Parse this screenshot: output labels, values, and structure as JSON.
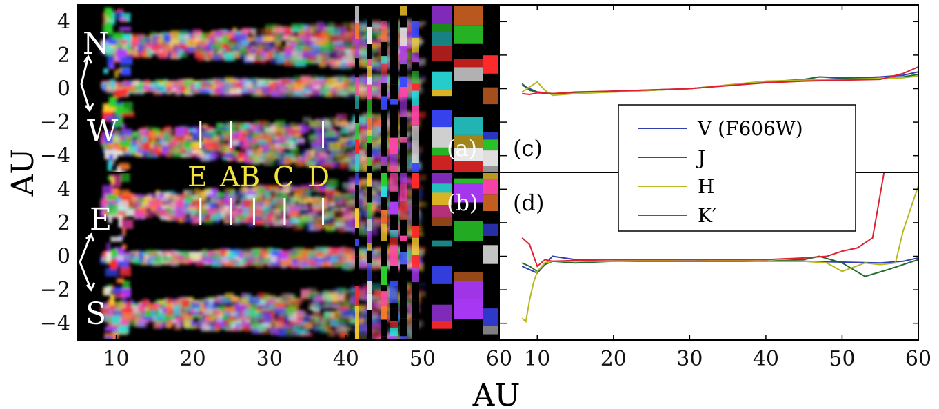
{
  "chart_data": [
    {
      "panel": "a",
      "type": "heatmap",
      "label": "(a)",
      "xlim": [
        5,
        60
      ],
      "ylim": [
        -5,
        5
      ],
      "yticks": [
        "4",
        "2",
        "0",
        "−2",
        "−4"
      ],
      "direction_labels": [
        "N",
        "W"
      ],
      "features": [
        {
          "name": "E",
          "x": 21
        },
        {
          "name": "A",
          "x": 25
        },
        {
          "name": "D",
          "x": 37
        }
      ]
    },
    {
      "panel": "b",
      "type": "heatmap",
      "label": "(b)",
      "xlim": [
        5,
        60
      ],
      "ylim": [
        -5,
        5
      ],
      "yticks": [
        "4",
        "2",
        "0",
        "−2",
        "−4"
      ],
      "xticks": [
        "10",
        "20",
        "30",
        "40",
        "50",
        "60"
      ],
      "direction_labels": [
        "E",
        "S"
      ],
      "features": [
        {
          "name": "E",
          "x": 21
        },
        {
          "name": "A",
          "x": 25
        },
        {
          "name": "B",
          "x": 28
        },
        {
          "name": "C",
          "x": 32
        },
        {
          "name": "D",
          "x": 37
        }
      ],
      "feature_label_text": [
        "E",
        "AB",
        "C",
        "D"
      ]
    },
    {
      "panel": "c",
      "type": "line",
      "label": "(c)",
      "xlim": [
        5,
        60
      ],
      "ylim": [
        -5,
        5
      ],
      "series": [
        {
          "name": "V (F606W)",
          "color": "#3040b0",
          "x": [
            8,
            10,
            12,
            15,
            20,
            30,
            40,
            45,
            50,
            55,
            58,
            60
          ],
          "y": [
            0.2,
            -0.2,
            -0.3,
            -0.25,
            -0.15,
            0.0,
            0.4,
            0.5,
            0.6,
            0.7,
            0.8,
            1.0
          ]
        },
        {
          "name": "J",
          "color": "#206a30",
          "x": [
            8,
            9,
            10,
            12,
            15,
            20,
            30,
            40,
            45,
            47,
            50,
            55,
            58,
            60
          ],
          "y": [
            0.3,
            -0.1,
            -0.2,
            -0.3,
            -0.25,
            -0.2,
            0.0,
            0.4,
            0.55,
            0.7,
            0.65,
            0.6,
            0.7,
            0.85
          ]
        },
        {
          "name": "H",
          "color": "#b8b820",
          "x": [
            8,
            9,
            10,
            11,
            12,
            15,
            20,
            30,
            40,
            45,
            50,
            55,
            58,
            60
          ],
          "y": [
            -0.2,
            0.1,
            0.4,
            -0.1,
            -0.4,
            -0.3,
            -0.2,
            0.0,
            0.45,
            0.5,
            0.55,
            0.6,
            0.65,
            0.75
          ]
        },
        {
          "name": "K′",
          "color": "#e02030",
          "x": [
            8,
            9,
            10,
            12,
            15,
            20,
            30,
            40,
            45,
            50,
            55,
            58,
            60
          ],
          "y": [
            -0.3,
            -0.35,
            -0.25,
            -0.3,
            -0.2,
            -0.15,
            0.0,
            0.35,
            0.45,
            0.5,
            0.55,
            0.9,
            1.3
          ]
        }
      ]
    },
    {
      "panel": "d",
      "type": "line",
      "label": "(d)",
      "xlim": [
        5,
        60
      ],
      "ylim": [
        -5,
        5
      ],
      "xticks": [
        "10",
        "20",
        "30",
        "40",
        "50",
        "60"
      ],
      "legend": {
        "position": "upper-center",
        "entries": [
          "V (F606W)",
          "J",
          "H",
          "K′"
        ]
      },
      "series": [
        {
          "name": "V (F606W)",
          "color": "#3040b0",
          "x": [
            8,
            9,
            10,
            11,
            12,
            15,
            20,
            30,
            40,
            45,
            50,
            55,
            58,
            60
          ],
          "y": [
            -0.6,
            -0.8,
            -1.0,
            -0.5,
            0.0,
            -0.2,
            -0.2,
            -0.2,
            -0.3,
            -0.3,
            -0.35,
            -0.4,
            -0.3,
            -0.1
          ]
        },
        {
          "name": "J",
          "color": "#206a30",
          "x": [
            8,
            9,
            10,
            11,
            12,
            15,
            20,
            30,
            40,
            45,
            47,
            50,
            53,
            56,
            60
          ],
          "y": [
            -0.4,
            -0.6,
            -0.9,
            -0.5,
            -0.3,
            -0.4,
            -0.3,
            -0.3,
            -0.3,
            -0.2,
            0.0,
            -0.4,
            -1.2,
            -0.8,
            -0.2
          ]
        },
        {
          "name": "H",
          "color": "#b8b820",
          "x": [
            8,
            8.5,
            9,
            9.5,
            10,
            11,
            12,
            15,
            20,
            30,
            40,
            45,
            48,
            50,
            53,
            55,
            57,
            58,
            60
          ],
          "y": [
            -3.7,
            -3.9,
            -2.6,
            -1.6,
            -0.9,
            -0.4,
            -0.3,
            -0.3,
            -0.3,
            -0.2,
            -0.3,
            -0.3,
            -0.4,
            -0.9,
            -0.4,
            -0.5,
            -0.4,
            1.5,
            4.2
          ]
        },
        {
          "name": "K′",
          "color": "#e02030",
          "x": [
            8,
            9,
            10,
            11,
            12,
            15,
            20,
            30,
            40,
            45,
            48,
            50,
            52,
            54,
            55.5,
            60
          ],
          "y": [
            1.1,
            0.7,
            -0.6,
            -0.2,
            -0.3,
            -0.25,
            -0.2,
            -0.2,
            -0.2,
            -0.1,
            0.0,
            0.3,
            0.5,
            1.1,
            5.0,
            5.0
          ]
        }
      ]
    }
  ],
  "axes": {
    "xlabel": "AU",
    "ylabel": "AU"
  }
}
